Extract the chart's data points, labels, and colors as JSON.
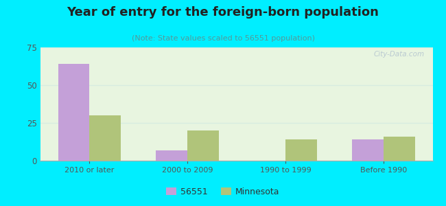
{
  "title": "Year of entry for the foreign-born population",
  "subtitle": "(Note: State values scaled to 56551 population)",
  "categories": [
    "2010 or later",
    "2000 to 2009",
    "1990 to 1999",
    "Before 1990"
  ],
  "values_56551": [
    64,
    7,
    0,
    14
  ],
  "values_minnesota": [
    30,
    20,
    14,
    16
  ],
  "color_56551": "#c4a0d8",
  "color_minnesota": "#b0c47a",
  "background_outer": "#00eeff",
  "background_inner": "#e8f5e0",
  "ylim": [
    0,
    75
  ],
  "yticks": [
    0,
    25,
    50,
    75
  ],
  "bar_width": 0.32,
  "legend_label_56551": "56551",
  "legend_label_minnesota": "Minnesota",
  "watermark": "City-Data.com",
  "title_color": "#222222",
  "subtitle_color": "#559999",
  "tick_color": "#555555",
  "grid_color": "#d8ece0"
}
